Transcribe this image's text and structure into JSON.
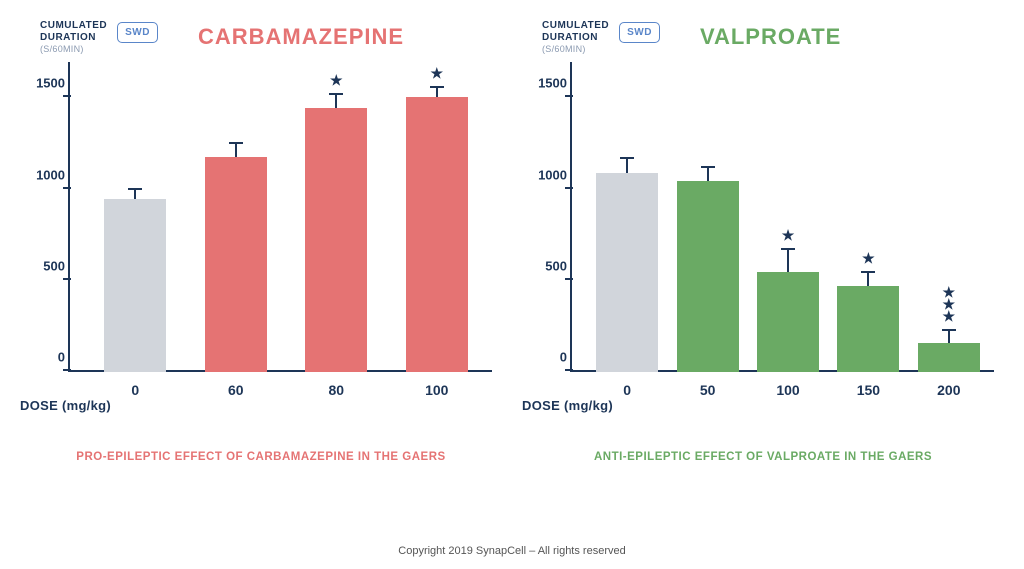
{
  "colors": {
    "navy": "#1d3557",
    "grey_sub": "#8a99b0",
    "badge_blue": "#5a86c9",
    "control_bar": "#d1d5db",
    "carb_color": "#e57373",
    "valp_color": "#6aaa64",
    "background": "#ffffff"
  },
  "y_axis": {
    "label_line1": "CUMULATED",
    "label_line2": "DURATION",
    "sublabel": "(S/60MIN)",
    "badge": "SWD",
    "ticks": [
      0,
      500,
      1000,
      1500
    ],
    "max": 1700
  },
  "x_axis": {
    "label": "DOSE (mg/kg)"
  },
  "carbamazepine": {
    "title": "CARBAMAZEPINE",
    "color": "#e57373",
    "caption": "PRO-EPILEPTIC EFFECT OF CARBAMAZEPINE IN THE GAERS",
    "doses": [
      "0",
      "60",
      "80",
      "100"
    ],
    "values": [
      950,
      1180,
      1450,
      1510
    ],
    "errors": [
      60,
      80,
      80,
      60
    ],
    "stars": [
      0,
      0,
      1,
      1
    ],
    "bar_colors": [
      "#d1d5db",
      "#e57373",
      "#e57373",
      "#e57373"
    ]
  },
  "valproate": {
    "title": "VALPROATE",
    "color": "#6aaa64",
    "caption": "ANTI-EPILEPTIC EFFECT OF VALPROATE IN THE GAERS",
    "doses": [
      "0",
      "50",
      "100",
      "150",
      "200"
    ],
    "values": [
      1090,
      1050,
      550,
      470,
      160
    ],
    "errors": [
      90,
      80,
      130,
      85,
      75
    ],
    "stars": [
      0,
      0,
      1,
      1,
      3
    ],
    "bar_colors": [
      "#d1d5db",
      "#6aaa64",
      "#6aaa64",
      "#6aaa64",
      "#6aaa64"
    ]
  },
  "footer": "Copyright 2019 SynapCell – All rights reserved"
}
